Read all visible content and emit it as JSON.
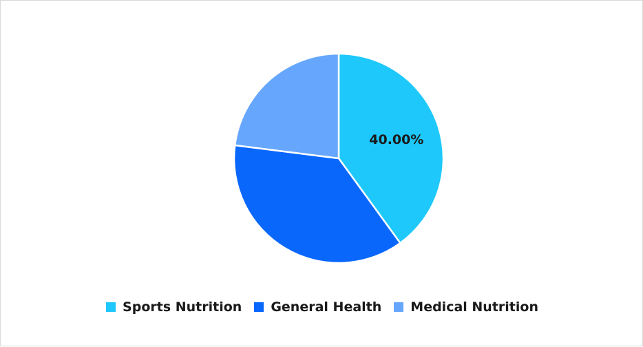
{
  "chart_data": {
    "type": "pie",
    "categories": [
      "Sports Nutrition",
      "General Health",
      "Medical Nutrition"
    ],
    "values": [
      40.0,
      37.0,
      23.0
    ],
    "colors": [
      "#1ec8fb",
      "#0a67fc",
      "#66a7fd"
    ],
    "data_labels": [
      "40.00%",
      "",
      ""
    ],
    "legend_position": "bottom",
    "start_angle_deg": 0,
    "direction": "clockwise"
  }
}
